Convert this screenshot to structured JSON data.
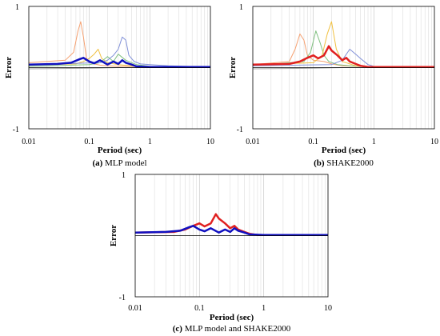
{
  "chart_data": [
    {
      "type": "line",
      "panel": "a",
      "caption_letter": "(a)",
      "caption_text": "MLP model",
      "xlabel": "Period (sec)",
      "ylabel": "Error",
      "x_scale": "log",
      "xlim": [
        0.01,
        10
      ],
      "ylim": [
        -1,
        1
      ],
      "x_ticks": [
        0.01,
        0.1,
        1,
        10
      ],
      "x_tick_labels": [
        "0.01",
        "0.1",
        "1",
        "10"
      ],
      "y_ticks": [
        1,
        -1
      ],
      "y_tick_labels": [
        "1",
        "-1"
      ],
      "grid": true,
      "series": [
        {
          "color": "#f5a070",
          "width": 1,
          "x": [
            0.01,
            0.04,
            0.055,
            0.065,
            0.072,
            0.08,
            0.09,
            0.1,
            0.12,
            0.15,
            0.2,
            0.3,
            0.5,
            1,
            10
          ],
          "y": [
            0.08,
            0.12,
            0.25,
            0.6,
            0.75,
            0.5,
            0.15,
            0.08,
            0.06,
            0.04,
            0.03,
            0.02,
            0.02,
            0.01,
            0.01
          ]
        },
        {
          "color": "#f0c040",
          "width": 1,
          "x": [
            0.01,
            0.06,
            0.08,
            0.1,
            0.12,
            0.14,
            0.16,
            0.2,
            0.3,
            0.6,
            10
          ],
          "y": [
            0.04,
            0.06,
            0.1,
            0.15,
            0.22,
            0.3,
            0.15,
            0.08,
            0.05,
            0.02,
            0.01
          ]
        },
        {
          "color": "#80c080",
          "width": 1,
          "x": [
            0.01,
            0.1,
            0.15,
            0.2,
            0.25,
            0.3,
            0.4,
            0.6,
            1,
            10
          ],
          "y": [
            0.02,
            0.05,
            0.08,
            0.18,
            0.1,
            0.22,
            0.12,
            0.05,
            0.02,
            0.01
          ]
        },
        {
          "color": "#8090d8",
          "width": 1,
          "x": [
            0.01,
            0.15,
            0.2,
            0.25,
            0.3,
            0.35,
            0.4,
            0.45,
            0.55,
            0.7,
            1,
            2,
            10
          ],
          "y": [
            0.05,
            0.08,
            0.12,
            0.2,
            0.3,
            0.5,
            0.45,
            0.2,
            0.1,
            0.06,
            0.05,
            0.03,
            0.01
          ]
        },
        {
          "color": "#a0a0a0",
          "width": 1,
          "x": [
            0.01,
            0.1,
            0.3,
            1,
            10
          ],
          "y": [
            -0.02,
            -0.01,
            0,
            0,
            0
          ]
        },
        {
          "color": "#1010c0",
          "width": 2.5,
          "x": [
            0.01,
            0.03,
            0.05,
            0.07,
            0.08,
            0.1,
            0.12,
            0.15,
            0.2,
            0.25,
            0.3,
            0.35,
            0.4,
            0.5,
            0.6,
            1,
            10
          ],
          "y": [
            0.05,
            0.06,
            0.08,
            0.14,
            0.16,
            0.1,
            0.07,
            0.12,
            0.05,
            0.1,
            0.06,
            0.12,
            0.08,
            0.05,
            0.02,
            0.01,
            0.01
          ]
        }
      ]
    },
    {
      "type": "line",
      "panel": "b",
      "caption_letter": "(b)",
      "caption_text": "SHAKE2000",
      "xlabel": "Period (sec)",
      "ylabel": "Error",
      "x_scale": "log",
      "xlim": [
        0.01,
        10
      ],
      "ylim": [
        -1,
        1
      ],
      "x_ticks": [
        0.01,
        0.1,
        1,
        10
      ],
      "x_tick_labels": [
        "0.01",
        "0.1",
        "1",
        "10"
      ],
      "y_ticks": [
        1,
        -1
      ],
      "y_tick_labels": [
        "1",
        "-1"
      ],
      "grid": true,
      "series": [
        {
          "color": "#f5a070",
          "width": 1,
          "x": [
            0.01,
            0.04,
            0.05,
            0.06,
            0.07,
            0.08,
            0.1,
            0.15,
            0.2,
            0.3,
            1,
            10
          ],
          "y": [
            0.05,
            0.1,
            0.3,
            0.55,
            0.45,
            0.2,
            0.12,
            0.1,
            0.06,
            0.03,
            0.01,
            0.01
          ]
        },
        {
          "color": "#80c080",
          "width": 1,
          "x": [
            0.01,
            0.07,
            0.09,
            0.11,
            0.13,
            0.15,
            0.18,
            0.25,
            0.4,
            1,
            10
          ],
          "y": [
            0.03,
            0.1,
            0.25,
            0.6,
            0.4,
            0.2,
            0.1,
            0.05,
            0.03,
            0.01,
            0.01
          ]
        },
        {
          "color": "#f0c040",
          "width": 1,
          "x": [
            0.01,
            0.1,
            0.14,
            0.17,
            0.2,
            0.24,
            0.3,
            0.5,
            1,
            10
          ],
          "y": [
            0.05,
            0.08,
            0.2,
            0.55,
            0.75,
            0.3,
            0.1,
            0.03,
            0.01,
            0.01
          ]
        },
        {
          "color": "#8090d8",
          "width": 1,
          "x": [
            0.01,
            0.2,
            0.3,
            0.4,
            0.5,
            0.6,
            0.8,
            1,
            10
          ],
          "y": [
            0.03,
            0.05,
            0.12,
            0.3,
            0.22,
            0.15,
            0.05,
            0.02,
            0.01
          ]
        },
        {
          "color": "#a0a0a0",
          "width": 1,
          "x": [
            0.01,
            0.1,
            0.3,
            1,
            10
          ],
          "y": [
            -0.02,
            -0.01,
            0,
            0,
            0
          ]
        },
        {
          "color": "#e02020",
          "width": 2.5,
          "x": [
            0.01,
            0.04,
            0.06,
            0.08,
            0.1,
            0.12,
            0.15,
            0.18,
            0.2,
            0.25,
            0.3,
            0.35,
            0.4,
            0.5,
            0.6,
            0.8,
            1,
            10
          ],
          "y": [
            0.05,
            0.06,
            0.1,
            0.16,
            0.2,
            0.15,
            0.2,
            0.35,
            0.28,
            0.2,
            0.12,
            0.16,
            0.1,
            0.06,
            0.03,
            0.01,
            0.01,
            0.01
          ]
        }
      ]
    },
    {
      "type": "line",
      "panel": "c",
      "caption_letter": "(c)",
      "caption_text": "MLP model and SHAKE2000",
      "xlabel": "Period (sec)",
      "ylabel": "Error",
      "x_scale": "log",
      "xlim": [
        0.01,
        10
      ],
      "ylim": [
        -1,
        1
      ],
      "x_ticks": [
        0.01,
        0.1,
        1,
        10
      ],
      "x_tick_labels": [
        "0.01",
        "0.1",
        "1",
        "10"
      ],
      "y_ticks": [
        1,
        -1
      ],
      "y_tick_labels": [
        "1",
        "-1"
      ],
      "grid": true,
      "series": [
        {
          "color": "#e02020",
          "width": 2.5,
          "x": [
            0.01,
            0.04,
            0.06,
            0.08,
            0.1,
            0.12,
            0.15,
            0.18,
            0.2,
            0.25,
            0.3,
            0.35,
            0.4,
            0.5,
            0.6,
            0.8,
            1,
            10
          ],
          "y": [
            0.05,
            0.06,
            0.1,
            0.16,
            0.2,
            0.15,
            0.2,
            0.35,
            0.28,
            0.2,
            0.12,
            0.16,
            0.1,
            0.06,
            0.03,
            0.01,
            0.01,
            0.01
          ]
        },
        {
          "color": "#1010c0",
          "width": 2.5,
          "x": [
            0.01,
            0.03,
            0.05,
            0.07,
            0.08,
            0.1,
            0.12,
            0.15,
            0.2,
            0.25,
            0.3,
            0.35,
            0.4,
            0.5,
            0.6,
            1,
            10
          ],
          "y": [
            0.05,
            0.06,
            0.08,
            0.14,
            0.16,
            0.1,
            0.07,
            0.12,
            0.05,
            0.1,
            0.06,
            0.12,
            0.08,
            0.05,
            0.02,
            0.01,
            0.01
          ]
        }
      ]
    }
  ]
}
